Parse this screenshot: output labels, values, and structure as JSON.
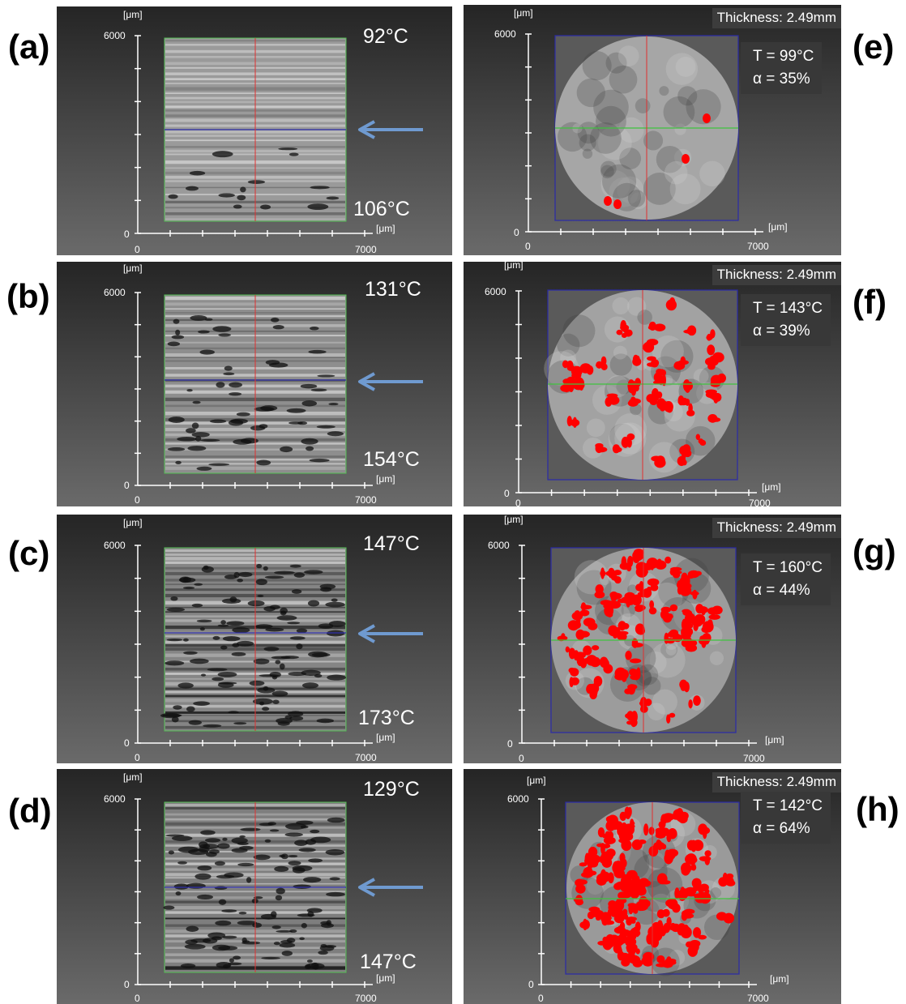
{
  "axis": {
    "unit": "[μm]",
    "y_max": "6000",
    "x_max": "7000",
    "zero": "0"
  },
  "left_panels": [
    {
      "label": "(a)",
      "top_temp": "92°C",
      "bottom_temp": "106°C"
    },
    {
      "label": "(b)",
      "top_temp": "131°C",
      "bottom_temp": "154°C"
    },
    {
      "label": "(c)",
      "top_temp": "147°C",
      "bottom_temp": "173°C"
    },
    {
      "label": "(d)",
      "top_temp": "129°C",
      "bottom_temp": "147°C"
    }
  ],
  "right_panels": [
    {
      "label": "(e)",
      "thickness": "Thickness: 2.49mm",
      "temperature": "T = 99°C",
      "alpha": "α = 35%"
    },
    {
      "label": "(f)",
      "thickness": "Thickness: 2.49mm",
      "temperature": "T = 143°C",
      "alpha": "α = 39%"
    },
    {
      "label": "(g)",
      "thickness": "Thickness: 2.49mm",
      "temperature": "T = 160°C",
      "alpha": "α = 44%"
    },
    {
      "label": "(h)",
      "thickness": "Thickness: 2.49mm",
      "temperature": "T = 142°C",
      "alpha": "α = 64%"
    }
  ],
  "colors": {
    "red_regions": "#ff0000",
    "arrow": "#6f9ad0",
    "horizontal_line_left": "#2a2aa8",
    "horizontal_line_right": "#3fc23f",
    "vertical_line": "#e03030"
  }
}
